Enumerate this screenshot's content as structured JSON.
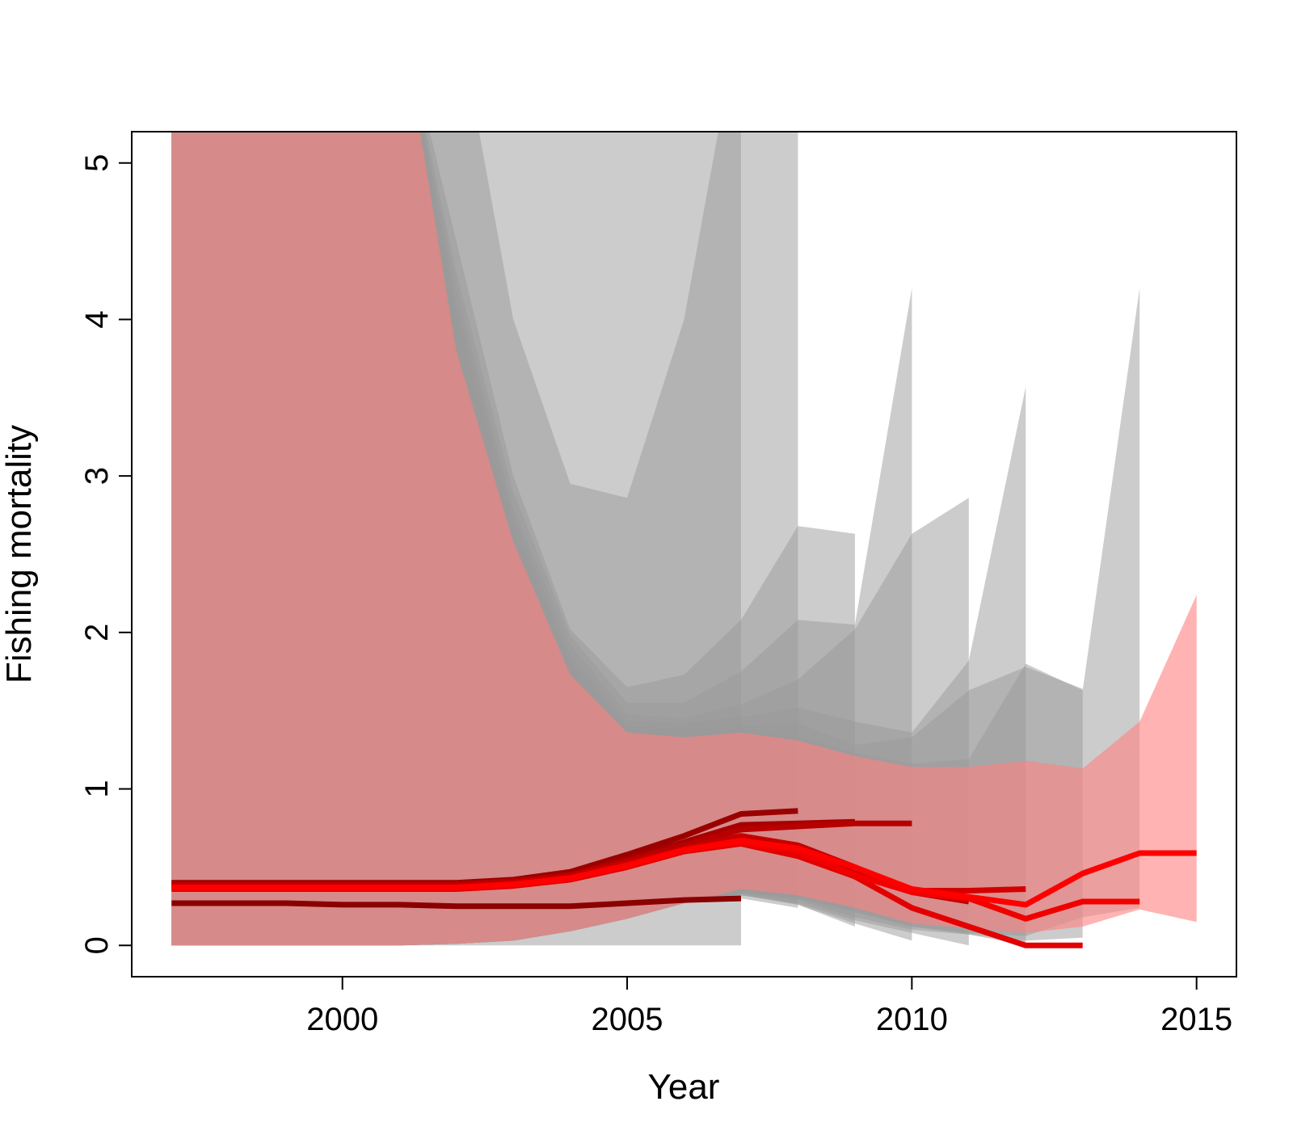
{
  "chart_data": {
    "type": "area",
    "title": "",
    "xlabel": "Year",
    "ylabel": "Fishing mortality",
    "xlim": [
      1996.3,
      2015.7
    ],
    "ylim": [
      -0.2,
      5.2
    ],
    "x_ticks": [
      "2000",
      "2005",
      "2010",
      "2015"
    ],
    "y_ticks": [
      "0",
      "1",
      "2",
      "3",
      "4",
      "5"
    ],
    "grid": false,
    "legend": "none",
    "colors": {
      "grey_band": "#9a9a9a",
      "current_band": "#ff8080",
      "current_line": "#ff0000",
      "early_line": "#8b0000"
    },
    "series": [
      {
        "end_year": 2007,
        "x": [
          1997,
          1998,
          1999,
          2000,
          2001,
          2002,
          2003,
          2004,
          2005,
          2006,
          2007
        ],
        "median": [
          0.27,
          0.27,
          0.27,
          0.26,
          0.26,
          0.25,
          0.25,
          0.25,
          0.27,
          0.29,
          0.3
        ],
        "lower": [
          0.0,
          0.0,
          0.0,
          0.0,
          0.0,
          0.0,
          0.0,
          0.0,
          0.0,
          0.0,
          0.0
        ],
        "upper": [
          6.0,
          6.0,
          6.0,
          6.0,
          6.0,
          6.0,
          6.0,
          6.0,
          6.0,
          6.0,
          6.0
        ]
      },
      {
        "end_year": 2008,
        "x": [
          1997,
          1998,
          1999,
          2000,
          2001,
          2002,
          2003,
          2004,
          2005,
          2006,
          2007,
          2008
        ],
        "median": [
          0.4,
          0.4,
          0.4,
          0.4,
          0.4,
          0.4,
          0.42,
          0.47,
          0.58,
          0.7,
          0.84,
          0.86
        ],
        "lower": [
          0.0,
          0.0,
          0.0,
          0.0,
          0.0,
          0.01,
          0.03,
          0.09,
          0.17,
          0.27,
          0.3,
          0.24
        ],
        "upper": [
          6.0,
          6.0,
          6.0,
          6.0,
          6.0,
          6.0,
          4.0,
          2.95,
          2.86,
          4.0,
          6.0,
          6.0
        ]
      },
      {
        "end_year": 2009,
        "x": [
          1997,
          1998,
          1999,
          2000,
          2001,
          2002,
          2003,
          2004,
          2005,
          2006,
          2007,
          2008,
          2009
        ],
        "median": [
          0.39,
          0.39,
          0.39,
          0.39,
          0.39,
          0.39,
          0.41,
          0.45,
          0.55,
          0.66,
          0.77,
          0.78,
          0.79
        ],
        "lower": [
          0.0,
          0.0,
          0.0,
          0.0,
          0.0,
          0.01,
          0.03,
          0.09,
          0.17,
          0.27,
          0.33,
          0.26,
          0.12
        ],
        "upper": [
          6.0,
          6.0,
          6.0,
          6.0,
          6.0,
          4.5,
          3.0,
          2.02,
          1.65,
          1.73,
          2.08,
          2.68,
          2.63
        ]
      },
      {
        "end_year": 2010,
        "x": [
          1997,
          1998,
          1999,
          2000,
          2001,
          2002,
          2003,
          2004,
          2005,
          2006,
          2007,
          2008,
          2009,
          2010
        ],
        "median": [
          0.39,
          0.39,
          0.39,
          0.39,
          0.39,
          0.39,
          0.41,
          0.45,
          0.54,
          0.64,
          0.74,
          0.76,
          0.78,
          0.78
        ],
        "lower": [
          0.0,
          0.0,
          0.0,
          0.0,
          0.0,
          0.01,
          0.03,
          0.09,
          0.17,
          0.27,
          0.32,
          0.26,
          0.14,
          0.03
        ],
        "upper": [
          6.0,
          6.0,
          6.0,
          6.0,
          6.0,
          4.3,
          2.9,
          1.98,
          1.55,
          1.55,
          1.75,
          2.08,
          2.05,
          4.2
        ]
      },
      {
        "end_year": 2011,
        "x": [
          1997,
          1998,
          1999,
          2000,
          2001,
          2002,
          2003,
          2004,
          2005,
          2006,
          2007,
          2008,
          2009,
          2010,
          2011
        ],
        "median": [
          0.38,
          0.38,
          0.38,
          0.38,
          0.38,
          0.38,
          0.4,
          0.44,
          0.53,
          0.62,
          0.7,
          0.64,
          0.5,
          0.34,
          0.28
        ],
        "lower": [
          0.0,
          0.0,
          0.0,
          0.0,
          0.0,
          0.01,
          0.03,
          0.09,
          0.17,
          0.27,
          0.32,
          0.27,
          0.16,
          0.08,
          0.0
        ],
        "upper": [
          6.0,
          6.0,
          6.0,
          6.0,
          6.0,
          4.2,
          2.8,
          1.92,
          1.48,
          1.45,
          1.54,
          1.7,
          2.02,
          2.63,
          2.86
        ]
      },
      {
        "end_year": 2012,
        "x": [
          1997,
          1998,
          1999,
          2000,
          2001,
          2002,
          2003,
          2004,
          2005,
          2006,
          2007,
          2008,
          2009,
          2010,
          2011,
          2012
        ],
        "median": [
          0.37,
          0.37,
          0.37,
          0.37,
          0.37,
          0.37,
          0.39,
          0.43,
          0.52,
          0.61,
          0.67,
          0.62,
          0.46,
          0.35,
          0.35,
          0.36
        ],
        "lower": [
          0.0,
          0.0,
          0.0,
          0.0,
          0.0,
          0.01,
          0.03,
          0.09,
          0.17,
          0.27,
          0.33,
          0.29,
          0.18,
          0.1,
          0.07,
          0.0
        ],
        "upper": [
          6.0,
          6.0,
          6.0,
          6.0,
          6.0,
          4.1,
          2.75,
          1.85,
          1.43,
          1.42,
          1.46,
          1.52,
          1.43,
          1.36,
          1.82,
          3.57
        ]
      },
      {
        "end_year": 2013,
        "x": [
          1997,
          1998,
          1999,
          2000,
          2001,
          2002,
          2003,
          2004,
          2005,
          2006,
          2007,
          2008,
          2009,
          2010,
          2011,
          2012,
          2013
        ],
        "median": [
          0.36,
          0.36,
          0.36,
          0.36,
          0.36,
          0.36,
          0.38,
          0.42,
          0.5,
          0.6,
          0.65,
          0.57,
          0.44,
          0.24,
          0.12,
          0.0,
          0.0
        ],
        "lower": [
          0.0,
          0.0,
          0.0,
          0.0,
          0.0,
          0.01,
          0.03,
          0.09,
          0.17,
          0.27,
          0.34,
          0.3,
          0.21,
          0.12,
          0.07,
          0.03,
          0.05
        ],
        "upper": [
          6.0,
          6.0,
          6.0,
          6.0,
          6.0,
          4.0,
          2.68,
          1.8,
          1.4,
          1.38,
          1.4,
          1.42,
          1.28,
          1.33,
          1.63,
          1.78,
          1.64
        ]
      },
      {
        "end_year": 2014,
        "x": [
          1997,
          1998,
          1999,
          2000,
          2001,
          2002,
          2003,
          2004,
          2005,
          2006,
          2007,
          2008,
          2009,
          2010,
          2011,
          2012,
          2013,
          2014
        ],
        "median": [
          0.37,
          0.37,
          0.37,
          0.37,
          0.37,
          0.37,
          0.39,
          0.43,
          0.51,
          0.61,
          0.66,
          0.6,
          0.45,
          0.34,
          0.3,
          0.17,
          0.28,
          0.28
        ],
        "lower": [
          0.0,
          0.0,
          0.0,
          0.0,
          0.0,
          0.01,
          0.03,
          0.09,
          0.17,
          0.27,
          0.35,
          0.31,
          0.22,
          0.12,
          0.08,
          0.06,
          0.18,
          0.24
        ],
        "upper": [
          6.0,
          6.0,
          6.0,
          6.0,
          6.0,
          3.9,
          2.62,
          1.76,
          1.37,
          1.34,
          1.37,
          1.33,
          1.23,
          1.16,
          1.19,
          1.8,
          1.63,
          4.2
        ]
      },
      {
        "end_year": 2015,
        "x": [
          1997,
          1998,
          1999,
          2000,
          2001,
          2002,
          2003,
          2004,
          2005,
          2006,
          2007,
          2008,
          2009,
          2010,
          2011,
          2012,
          2013,
          2014,
          2015
        ],
        "median": [
          0.37,
          0.37,
          0.37,
          0.37,
          0.37,
          0.37,
          0.39,
          0.43,
          0.51,
          0.61,
          0.67,
          0.62,
          0.5,
          0.36,
          0.31,
          0.26,
          0.46,
          0.59,
          0.59
        ],
        "lower": [
          0.0,
          0.0,
          0.0,
          0.0,
          0.0,
          0.01,
          0.03,
          0.09,
          0.17,
          0.27,
          0.36,
          0.32,
          0.24,
          0.14,
          0.11,
          0.08,
          0.12,
          0.23,
          0.15
        ],
        "upper": [
          6.0,
          6.0,
          6.0,
          6.0,
          6.0,
          3.8,
          2.58,
          1.73,
          1.36,
          1.33,
          1.36,
          1.31,
          1.21,
          1.14,
          1.14,
          1.18,
          1.13,
          1.43,
          2.24
        ]
      }
    ]
  }
}
